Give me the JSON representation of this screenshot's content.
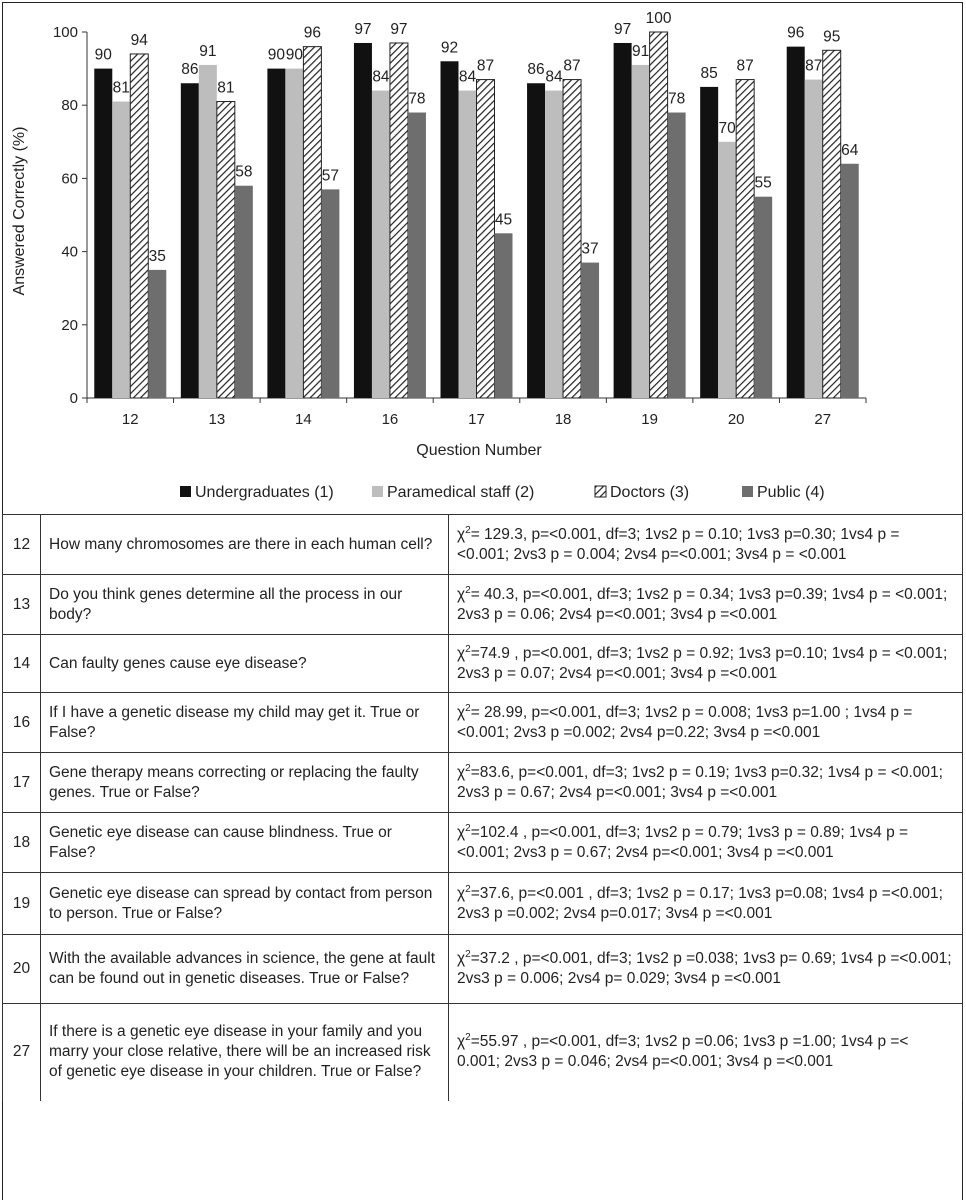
{
  "chart_data": {
    "type": "bar",
    "title": "",
    "xlabel": "Question Number",
    "ylabel": "Answered Correctly (%)",
    "ylim": [
      0,
      100
    ],
    "yticks": [
      0,
      20,
      40,
      60,
      80,
      100
    ],
    "grid": false,
    "legend_position": "bottom",
    "categories": [
      "12",
      "13",
      "14",
      "16",
      "17",
      "18",
      "19",
      "20",
      "27"
    ],
    "series": [
      {
        "name": "Undergraduates (1)",
        "color": "#111111",
        "pattern": "solid",
        "values": [
          90,
          86,
          90,
          97,
          92,
          86,
          97,
          85,
          96
        ]
      },
      {
        "name": "Paramedical staff (2)",
        "color": "#bdbdbd",
        "pattern": "solid",
        "values": [
          81,
          91,
          90,
          84,
          84,
          84,
          91,
          70,
          87
        ]
      },
      {
        "name": "Doctors (3)",
        "color": "#ffffff",
        "pattern": "diagonal-hatch",
        "values": [
          94,
          81,
          96,
          97,
          87,
          87,
          100,
          87,
          95
        ]
      },
      {
        "name": "Public (4)",
        "color": "#6e6e6e",
        "pattern": "solid",
        "values": [
          35,
          58,
          57,
          78,
          45,
          37,
          78,
          55,
          64
        ]
      }
    ]
  },
  "table": {
    "rows": [
      {
        "num": "12",
        "question": "How many chromosomes are there in each human cell?",
        "stat_lead": "χ",
        "stat_sup": "2",
        "stat_rest": "= 129.3, p=<0.001, df=3; 1vs2 p = 0.10; 1vs3 p=0.30; 1vs4 p = <0.001; 2vs3 p = 0.004; 2vs4 p=<0.001; 3vs4 p = <0.001"
      },
      {
        "num": "13",
        "question": "Do you think genes determine all the process in our body?",
        "stat_lead": "χ",
        "stat_sup": "2",
        "stat_rest": "= 40.3, p=<0.001, df=3; 1vs2 p = 0.34; 1vs3 p=0.39; 1vs4 p = <0.001; 2vs3 p = 0.06; 2vs4 p=<0.001; 3vs4 p =<0.001"
      },
      {
        "num": "14",
        "question": "Can faulty genes cause eye disease?",
        "stat_lead": "χ",
        "stat_sup": "2",
        "stat_rest": "=74.9 , p=<0.001, df=3; 1vs2 p = 0.92; 1vs3 p=0.10; 1vs4 p = <0.001; 2vs3 p = 0.07; 2vs4 p=<0.001; 3vs4 p =<0.001"
      },
      {
        "num": "16",
        "question": "If I have a genetic disease my child may get it. True or False?",
        "stat_lead": "χ",
        "stat_sup": "2",
        "stat_rest": "= 28.99, p=<0.001, df=3; 1vs2 p = 0.008; 1vs3 p=1.00 ; 1vs4 p =<0.001; 2vs3 p =0.002; 2vs4 p=0.22; 3vs4 p =<0.001"
      },
      {
        "num": "17",
        "question": "Gene therapy means correcting or replacing the faulty genes. True or False?",
        "stat_lead": "χ",
        "stat_sup": "2",
        "stat_rest": "=83.6, p=<0.001, df=3; 1vs2 p = 0.19; 1vs3 p=0.32; 1vs4 p = <0.001; 2vs3 p = 0.67; 2vs4 p=<0.001; 3vs4 p =<0.001"
      },
      {
        "num": "18",
        "question": "Genetic eye disease can cause blindness. True or False?",
        "stat_lead": "χ",
        "stat_sup": "2",
        "stat_rest": "=102.4 , p=<0.001, df=3; 1vs2 p = 0.79; 1vs3 p = 0.89; 1vs4 p =<0.001; 2vs3 p = 0.67; 2vs4 p=<0.001; 3vs4 p =<0.001"
      },
      {
        "num": "19",
        "question": "Genetic eye disease can spread by contact from person to person. True or False?",
        "stat_lead": "χ",
        "stat_sup": "2",
        "stat_rest": "=37.6, p=<0.001 , df=3; 1vs2 p = 0.17; 1vs3 p=0.08; 1vs4 p =<0.001; 2vs3 p =0.002; 2vs4 p=0.017; 3vs4 p =<0.001"
      },
      {
        "num": "20",
        "question": "With the available advances in science, the gene at fault can be found out in genetic diseases. True or False?",
        "stat_lead": "χ",
        "stat_sup": "2",
        "stat_rest": "=37.2 , p=<0.001, df=3; 1vs2 p =0.038; 1vs3 p= 0.69; 1vs4 p =<0.001; 2vs3 p = 0.006; 2vs4 p= 0.029; 3vs4 p =<0.001"
      },
      {
        "num": "27",
        "question": "If there is a genetic eye disease in your family and you marry your close relative, there will be an increased risk of genetic eye disease in your children. True or False?",
        "stat_lead": "χ",
        "stat_sup": "2",
        "stat_rest": "=55.97 , p=<0.001, df=3; 1vs2 p =0.06; 1vs3 p =1.00; 1vs4 p =< 0.001; 2vs3 p = 0.046; 2vs4 p=<0.001; 3vs4 p =<0.001"
      }
    ]
  }
}
